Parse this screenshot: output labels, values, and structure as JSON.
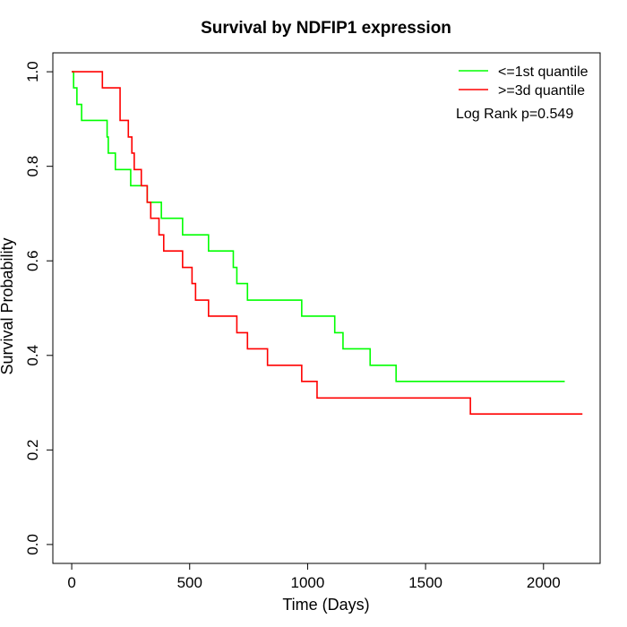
{
  "chart_data": {
    "type": "line",
    "title": "Survival by NDFIP1 expression",
    "xlabel": "Time (Days)",
    "ylabel": "Survival Probability",
    "xlim": [
      -80,
      2240
    ],
    "ylim": [
      -0.04,
      1.04
    ],
    "x_ticks": [
      0,
      500,
      1000,
      1500,
      2000
    ],
    "x_tick_labels": [
      "0",
      "500",
      "1000",
      "1500",
      "2000"
    ],
    "y_ticks": [
      0.0,
      0.2,
      0.4,
      0.6,
      0.8,
      1.0
    ],
    "y_tick_labels": [
      "0.0",
      "0.2",
      "0.4",
      "0.6",
      "0.8",
      "1.0"
    ],
    "grid": false,
    "legend_position": "top-right",
    "annotation": "Log Rank p=0.549",
    "series": [
      {
        "name": "<=1st quantile",
        "color": "#00ff00",
        "points": [
          [
            0,
            1.0
          ],
          [
            8,
            0.966
          ],
          [
            22,
            0.931
          ],
          [
            42,
            0.897
          ],
          [
            150,
            0.862
          ],
          [
            155,
            0.828
          ],
          [
            185,
            0.793
          ],
          [
            250,
            0.759
          ],
          [
            320,
            0.724
          ],
          [
            380,
            0.69
          ],
          [
            470,
            0.655
          ],
          [
            580,
            0.621
          ],
          [
            685,
            0.586
          ],
          [
            700,
            0.552
          ],
          [
            745,
            0.517
          ],
          [
            975,
            0.483
          ],
          [
            1115,
            0.448
          ],
          [
            1150,
            0.414
          ],
          [
            1265,
            0.379
          ],
          [
            1375,
            0.345
          ],
          [
            2090,
            0.345
          ]
        ]
      },
      {
        "name": ">=3d quantile",
        "color": "#ff0000",
        "points": [
          [
            0,
            1.0
          ],
          [
            130,
            0.966
          ],
          [
            205,
            0.897
          ],
          [
            240,
            0.862
          ],
          [
            255,
            0.828
          ],
          [
            265,
            0.793
          ],
          [
            295,
            0.759
          ],
          [
            320,
            0.724
          ],
          [
            335,
            0.69
          ],
          [
            370,
            0.655
          ],
          [
            390,
            0.621
          ],
          [
            470,
            0.586
          ],
          [
            510,
            0.552
          ],
          [
            525,
            0.517
          ],
          [
            580,
            0.483
          ],
          [
            700,
            0.448
          ],
          [
            745,
            0.414
          ],
          [
            830,
            0.379
          ],
          [
            975,
            0.345
          ],
          [
            1040,
            0.31
          ],
          [
            1690,
            0.276
          ],
          [
            2165,
            0.276
          ]
        ]
      }
    ]
  }
}
